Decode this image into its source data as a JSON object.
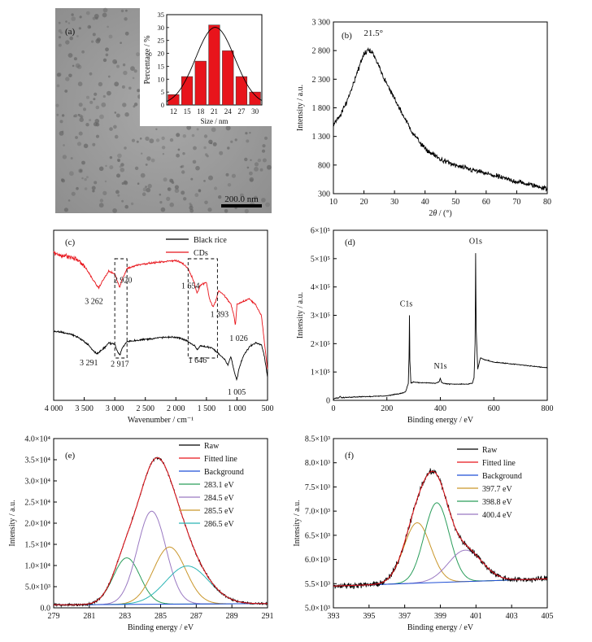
{
  "chart_data": [
    {
      "panel": "(a)",
      "type": "bar",
      "inset": {
        "xlabel": "Size / nm",
        "ylabel": "Percentage / %",
        "categories": [
          "12",
          "15",
          "18",
          "21",
          "24",
          "27",
          "30"
        ],
        "values": [
          4,
          11,
          17,
          31,
          21,
          11,
          5
        ],
        "ylim": [
          0,
          35
        ],
        "yticks": [
          "0",
          "5",
          "10",
          "15",
          "20",
          "25",
          "30",
          "35"
        ],
        "bar_color": "#e8141b"
      },
      "scale_label": "200.0 nm"
    },
    {
      "panel": "(b)",
      "type": "line",
      "xlabel": "2θ / (°)",
      "xlabel_parts": {
        "pre": "2",
        "italic": "θ",
        "post": " / (°)"
      },
      "ylabel": "Intensity / a.u.",
      "xlim": [
        10,
        80
      ],
      "ylim": [
        300,
        3300
      ],
      "xticks": [
        "10",
        "20",
        "30",
        "40",
        "50",
        "60",
        "70",
        "80"
      ],
      "yticks": [
        "300",
        "800",
        "1 300",
        "1 800",
        "2 300",
        "2 800",
        "3 300"
      ],
      "peak_label": "21.5°",
      "peak_x": 21.5,
      "x": [
        10,
        12,
        14,
        16,
        18,
        20,
        21.5,
        23,
        25,
        27,
        30,
        33,
        36,
        40,
        45,
        50,
        55,
        60,
        65,
        70,
        75,
        80
      ],
      "y": [
        1500,
        1640,
        1860,
        2140,
        2460,
        2730,
        2830,
        2740,
        2520,
        2260,
        1960,
        1650,
        1360,
        1080,
        900,
        790,
        720,
        650,
        580,
        510,
        450,
        390
      ]
    },
    {
      "panel": "(c)",
      "type": "line",
      "xlabel": "Wavenumber / cm⁻¹",
      "xlim": [
        4000,
        500
      ],
      "xticks": [
        "4 000",
        "3 500",
        "3 000",
        "2 500",
        "2 000",
        "1 500",
        "1 000",
        "500"
      ],
      "legend": [
        "Black rice",
        "CDs"
      ],
      "series": [
        {
          "name": "CDs",
          "color": "#e8141b",
          "x": [
            4000,
            3900,
            3800,
            3700,
            3600,
            3500,
            3400,
            3300,
            3262,
            3200,
            3100,
            3000,
            2950,
            2920,
            2880,
            2800,
            2600,
            2400,
            2200,
            2000,
            1900,
            1800,
            1700,
            1654,
            1600,
            1500,
            1450,
            1393,
            1350,
            1300,
            1200,
            1100,
            1050,
            1026,
            1000,
            900,
            800,
            700,
            600,
            550,
            500
          ],
          "y": [
            0.95,
            0.94,
            0.93,
            0.92,
            0.9,
            0.86,
            0.79,
            0.72,
            0.7,
            0.75,
            0.82,
            0.8,
            0.74,
            0.7,
            0.76,
            0.84,
            0.87,
            0.88,
            0.89,
            0.9,
            0.88,
            0.84,
            0.74,
            0.66,
            0.72,
            0.74,
            0.62,
            0.56,
            0.6,
            0.68,
            0.64,
            0.58,
            0.5,
            0.42,
            0.58,
            0.6,
            0.62,
            0.58,
            0.5,
            0.3,
            0.1
          ]
        },
        {
          "name": "Black rice",
          "color": "#000000",
          "x": [
            4000,
            3900,
            3800,
            3700,
            3600,
            3500,
            3400,
            3350,
            3291,
            3200,
            3100,
            3000,
            2960,
            2917,
            2880,
            2800,
            2600,
            2400,
            2200,
            2000,
            1900,
            1800,
            1700,
            1646,
            1600,
            1500,
            1400,
            1300,
            1200,
            1150,
            1100,
            1050,
            1005,
            960,
            900,
            800,
            700,
            600,
            550,
            500
          ],
          "y": [
            0.38,
            0.38,
            0.37,
            0.36,
            0.34,
            0.31,
            0.27,
            0.24,
            0.22,
            0.25,
            0.3,
            0.29,
            0.24,
            0.21,
            0.26,
            0.31,
            0.32,
            0.33,
            0.34,
            0.34,
            0.33,
            0.31,
            0.28,
            0.25,
            0.28,
            0.27,
            0.26,
            0.22,
            0.18,
            0.14,
            0.2,
            0.1,
            0.03,
            0.12,
            0.2,
            0.27,
            0.3,
            0.29,
            0.2,
            0.05
          ]
        }
      ],
      "annotations": [
        {
          "text": "3 262",
          "series": "CDs",
          "x": 3262
        },
        {
          "text": "2 920",
          "series": "CDs",
          "x": 2920
        },
        {
          "text": "1 654",
          "series": "CDs",
          "x": 1654
        },
        {
          "text": "1 393",
          "series": "CDs",
          "x": 1393
        },
        {
          "text": "1 026",
          "series": "CDs",
          "x": 1026
        },
        {
          "text": "3 291",
          "series": "Black rice",
          "x": 3291
        },
        {
          "text": "2 917",
          "series": "Black rice",
          "x": 2917
        },
        {
          "text": "1 646",
          "series": "Black rice",
          "x": 1646
        },
        {
          "text": "1 005",
          "series": "Black rice",
          "x": 1005
        }
      ],
      "dashed_boxes_x": [
        [
          3000,
          2800
        ],
        [
          1800,
          1320
        ]
      ]
    },
    {
      "panel": "(d)",
      "type": "line",
      "xlabel": "Binding energy / eV",
      "ylabel": "Intensity / a.u.",
      "xlim": [
        0,
        800
      ],
      "ylim": [
        0,
        600000
      ],
      "xticks": [
        "0",
        "200",
        "400",
        "600",
        "800"
      ],
      "yticks": [
        "0",
        "1×10⁵",
        "2×10⁵",
        "3×10⁵",
        "4×10⁵",
        "5×10⁵",
        "6×10⁵"
      ],
      "peaks": [
        {
          "text": "C1s",
          "x": 284.5
        },
        {
          "text": "N1s",
          "x": 400
        },
        {
          "text": "O1s",
          "x": 532
        }
      ],
      "x": [
        0,
        10,
        20,
        25,
        30,
        60,
        100,
        150,
        200,
        250,
        270,
        280,
        283,
        284.5,
        286,
        290,
        300,
        320,
        350,
        380,
        395,
        400,
        405,
        420,
        460,
        500,
        520,
        526,
        530,
        532,
        534,
        540,
        550,
        560,
        580,
        600,
        650,
        700,
        750,
        800
      ],
      "y": [
        5000,
        8000,
        9000,
        14000,
        9000,
        11000,
        13000,
        14000,
        16000,
        24000,
        30000,
        60000,
        150000,
        300000,
        140000,
        60000,
        65000,
        62000,
        62000,
        60000,
        65000,
        78000,
        62000,
        58000,
        57000,
        57000,
        60000,
        80000,
        200000,
        520000,
        250000,
        110000,
        150000,
        145000,
        140000,
        135000,
        130000,
        125000,
        120000,
        115000
      ]
    },
    {
      "panel": "(e)",
      "type": "line",
      "xlabel": "Binding energy / eV",
      "ylabel": "Intensity / a.u.",
      "xlim": [
        279,
        291
      ],
      "ylim": [
        0,
        40000
      ],
      "xticks": [
        "279",
        "281",
        "283",
        "285",
        "287",
        "289",
        "291"
      ],
      "yticks": [
        "0.0",
        "5.0×10³",
        "1.0×10⁴",
        "1.5×10⁴",
        "2.0×10⁴",
        "2.5×10⁴",
        "3.0×10⁴",
        "3.5×10⁴",
        "4.0×10⁴"
      ],
      "legend": [
        "Raw",
        "Fitted line",
        "Background",
        "283.1 eV",
        "284.5 eV",
        "285.5 eV",
        "286.5 eV"
      ],
      "series": [
        {
          "name": "Raw",
          "color": "#000000"
        },
        {
          "name": "Fitted line",
          "color": "#e8141b"
        },
        {
          "name": "Background",
          "color": "#1f4fd6",
          "baseline": [
            700,
            1000
          ]
        },
        {
          "name": "283.1 eV",
          "color": "#2a9d5b",
          "center": 283.1,
          "height": 11000,
          "sigma": 0.75
        },
        {
          "name": "284.5 eV",
          "color": "#9a79c2",
          "center": 284.5,
          "height": 22000,
          "sigma": 0.8
        },
        {
          "name": "285.5 eV",
          "color": "#c9962a",
          "center": 285.5,
          "height": 13500,
          "sigma": 0.9
        },
        {
          "name": "286.5 eV",
          "color": "#2bb5b5",
          "center": 286.5,
          "height": 9000,
          "sigma": 1.2
        }
      ]
    },
    {
      "panel": "(f)",
      "type": "line",
      "xlabel": "Binding energy / eV",
      "ylabel": "Intensity / a.u.",
      "xlim": [
        393,
        405
      ],
      "ylim": [
        5000,
        8500
      ],
      "xticks": [
        "393",
        "395",
        "397",
        "399",
        "401",
        "403",
        "405"
      ],
      "yticks": [
        "5.0×10³",
        "5.5×10³",
        "6.0×10³",
        "6.5×10³",
        "7.0×10³",
        "7.5×10³",
        "8.0×10³",
        "8.5×10³"
      ],
      "legend": [
        "Raw",
        "Fitted line",
        "Background",
        "397.7 eV",
        "398.8 eV",
        "400.4 eV"
      ],
      "series": [
        {
          "name": "Raw",
          "color": "#000000"
        },
        {
          "name": "Fitted line",
          "color": "#e8141b"
        },
        {
          "name": "Background",
          "color": "#1f4fd6",
          "baseline": [
            5450,
            5600
          ]
        },
        {
          "name": "397.7 eV",
          "color": "#c9962a",
          "center": 397.7,
          "height": 1250,
          "sigma": 0.75
        },
        {
          "name": "398.8 eV",
          "color": "#2a9d5b",
          "center": 398.8,
          "height": 1650,
          "sigma": 0.7
        },
        {
          "name": "400.4 eV",
          "color": "#9a79c2",
          "center": 400.4,
          "height": 650,
          "sigma": 0.95
        }
      ]
    }
  ]
}
